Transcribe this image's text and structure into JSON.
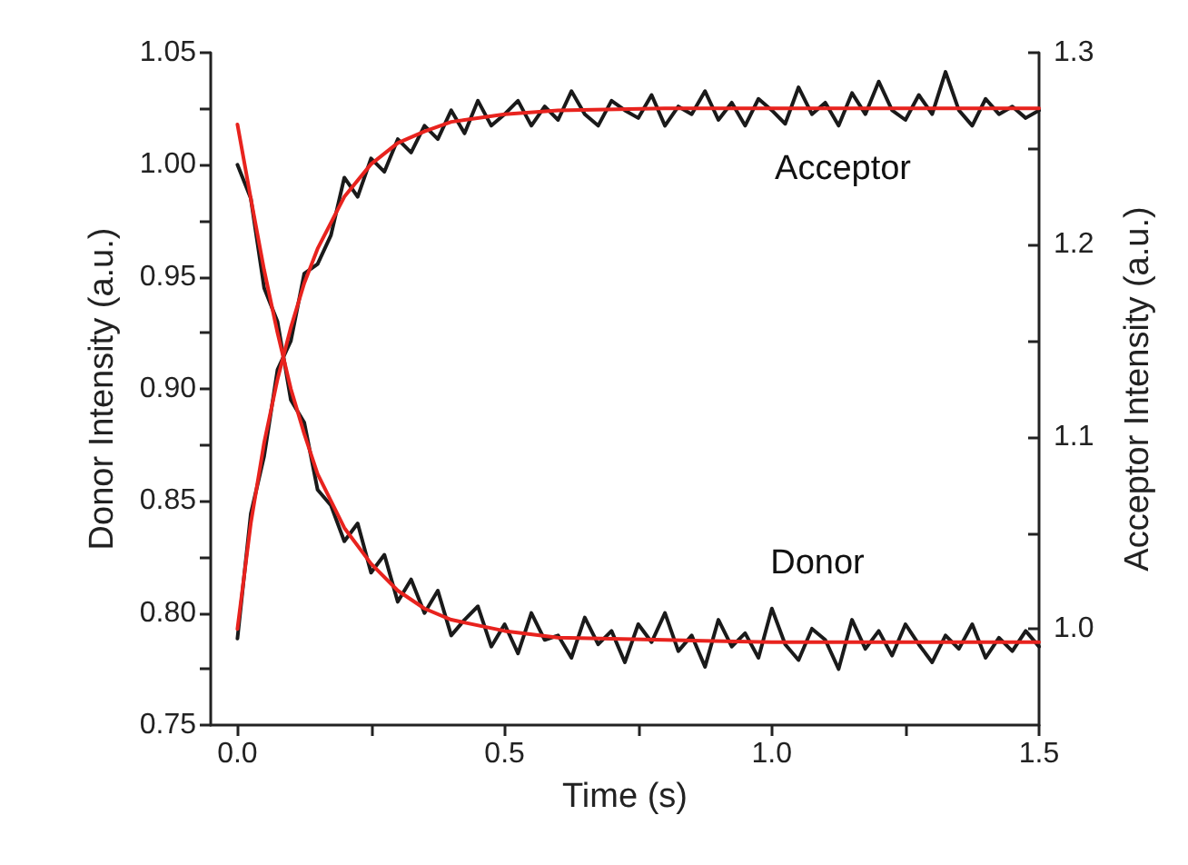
{
  "chart_data": {
    "type": "line",
    "xlabel": "Time (s)",
    "ylabel": "Donor Intensity (a.u.)",
    "y2label": "Acceptor Intensity (a.u.)",
    "x": [
      0,
      0.025,
      0.05,
      0.075,
      0.1,
      0.125,
      0.15,
      0.175,
      0.2,
      0.225,
      0.25,
      0.275,
      0.3,
      0.325,
      0.35,
      0.375,
      0.4,
      0.425,
      0.45,
      0.475,
      0.5,
      0.525,
      0.55,
      0.575,
      0.6,
      0.625,
      0.65,
      0.675,
      0.7,
      0.725,
      0.75,
      0.775,
      0.8,
      0.825,
      0.85,
      0.875,
      0.9,
      0.925,
      0.95,
      0.975,
      1.0,
      1.025,
      1.05,
      1.075,
      1.1,
      1.125,
      1.15,
      1.175,
      1.2,
      1.225,
      1.25,
      1.275,
      1.3,
      1.325,
      1.35,
      1.375,
      1.4,
      1.425,
      1.45,
      1.475,
      1.5
    ],
    "series": [
      {
        "color": "#1a1a1a",
        "values": [
          1.0,
          0.985,
          0.945,
          0.93,
          0.895,
          0.885,
          0.855,
          0.848,
          0.832,
          0.84,
          0.818,
          0.826,
          0.805,
          0.815,
          0.8,
          0.81,
          0.79,
          0.797,
          0.803,
          0.785,
          0.795,
          0.782,
          0.8,
          0.788,
          0.79,
          0.78,
          0.798,
          0.786,
          0.792,
          0.778,
          0.795,
          0.787,
          0.8,
          0.783,
          0.79,
          0.776,
          0.797,
          0.785,
          0.791,
          0.78,
          0.802,
          0.786,
          0.779,
          0.793,
          0.788,
          0.775,
          0.797,
          0.784,
          0.792,
          0.781,
          0.795,
          0.786,
          0.778,
          0.79,
          0.784,
          0.795,
          0.78,
          0.789,
          0.783,
          0.792,
          0.785
        ]
      },
      {
        "color": "#1a1a1a",
        "axis": "y2",
        "values": [
          0.995,
          1.06,
          1.09,
          1.135,
          1.15,
          1.185,
          1.19,
          1.205,
          1.235,
          1.225,
          1.245,
          1.238,
          1.255,
          1.248,
          1.262,
          1.255,
          1.27,
          1.258,
          1.275,
          1.262,
          1.268,
          1.275,
          1.262,
          1.272,
          1.265,
          1.28,
          1.268,
          1.262,
          1.275,
          1.27,
          1.266,
          1.278,
          1.262,
          1.272,
          1.268,
          1.28,
          1.265,
          1.274,
          1.262,
          1.276,
          1.27,
          1.263,
          1.282,
          1.268,
          1.274,
          1.262,
          1.279,
          1.268,
          1.285,
          1.27,
          1.265,
          1.278,
          1.268,
          1.29,
          1.27,
          1.262,
          1.276,
          1.268,
          1.272,
          1.266,
          1.27
        ]
      },
      {
        "color": "#e8231e",
        "x": [
          0,
          0.025,
          0.05,
          0.075,
          0.1,
          0.125,
          0.15,
          0.2,
          0.25,
          0.3,
          0.35,
          0.4,
          0.5,
          0.6,
          0.8,
          1.0,
          1.25,
          1.5
        ],
        "values": [
          1.018,
          0.985,
          0.953,
          0.925,
          0.9,
          0.88,
          0.862,
          0.838,
          0.822,
          0.81,
          0.802,
          0.797,
          0.792,
          0.789,
          0.788,
          0.787,
          0.787,
          0.787
        ]
      },
      {
        "color": "#e8231e",
        "axis": "y2",
        "x": [
          0,
          0.025,
          0.05,
          0.075,
          0.1,
          0.125,
          0.15,
          0.2,
          0.25,
          0.3,
          0.35,
          0.4,
          0.5,
          0.6,
          0.8,
          1.0,
          1.5
        ],
        "values": [
          1.0,
          1.055,
          1.097,
          1.13,
          1.157,
          1.18,
          1.198,
          1.225,
          1.242,
          1.253,
          1.259,
          1.264,
          1.268,
          1.27,
          1.271,
          1.271,
          1.271
        ]
      }
    ],
    "annotations": [
      "Acceptor",
      "Donor"
    ],
    "xlim": [
      -0.05,
      1.5
    ],
    "xticks": [
      {
        "value": 0,
        "label": "0.0"
      },
      {
        "value": 0.25,
        "label": null
      },
      {
        "value": 0.5,
        "label": "0.5"
      },
      {
        "value": 0.75,
        "label": null
      },
      {
        "value": 1.0,
        "label": "1.0"
      },
      {
        "value": 1.25,
        "label": null
      },
      {
        "value": 1.5,
        "label": "1.5"
      }
    ],
    "ylim": [
      0.75,
      1.05
    ],
    "yticks": [
      0.75,
      {
        "value": 0.775,
        "label": null
      },
      {
        "value": 0.8,
        "label": "0.80"
      },
      {
        "value": 0.825,
        "label": null
      },
      0.85,
      {
        "value": 0.875,
        "label": null
      },
      {
        "value": 0.9,
        "label": "0.90"
      },
      {
        "value": 0.925,
        "label": null
      },
      0.95,
      {
        "value": 0.975,
        "label": null
      },
      {
        "value": 1.0,
        "label": "1.00"
      },
      {
        "value": 1.025,
        "label": null
      },
      1.05
    ],
    "y2lim": [
      0.95,
      1.3
    ],
    "y2ticks": [
      {
        "value": 1.0,
        "label": "1.0"
      },
      {
        "value": 1.05,
        "label": null
      },
      1.1,
      {
        "value": 1.15,
        "label": null
      },
      1.2,
      {
        "value": 1.25,
        "label": null
      },
      1.3
    ],
    "grid": false,
    "marker": "none",
    "line_style": "solid"
  }
}
